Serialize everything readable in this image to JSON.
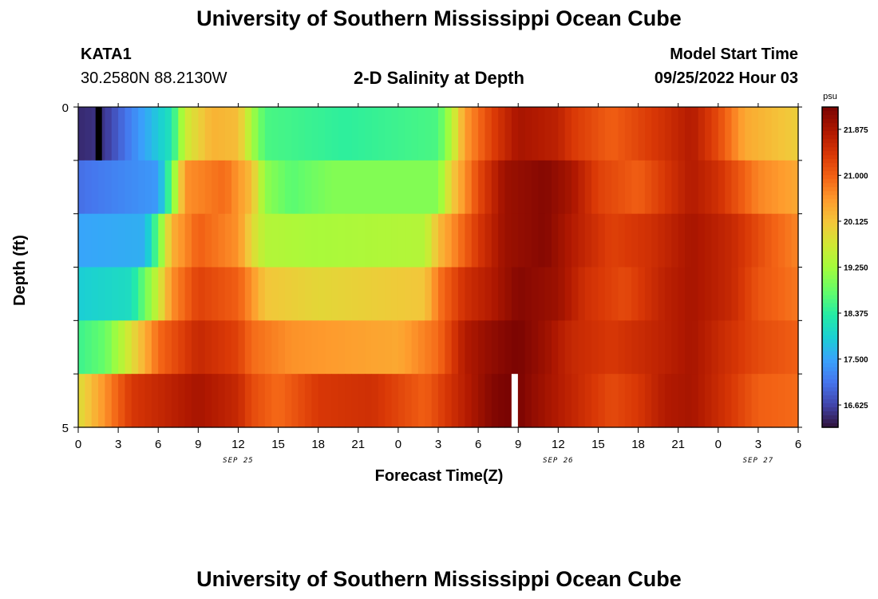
{
  "page": {
    "title": "University of Southern Mississippi Ocean Cube",
    "station": "KATA1",
    "coords": "30.2580N  88.2130W",
    "subtitle": "2-D Salinity at Depth",
    "model_label": "Model Start Time",
    "model_time": "09/25/2022 Hour 03",
    "footer_title": "University of Southern Mississippi Ocean Cube"
  },
  "chart_data": {
    "type": "heatmap",
    "title": "2-D Salinity at Depth",
    "xlabel": "Forecast Time(Z)",
    "ylabel": "Depth (ft)",
    "x_tick_labels": [
      "0",
      "3",
      "6",
      "9",
      "12",
      "15",
      "18",
      "21",
      "0",
      "3",
      "6",
      "9",
      "12",
      "15",
      "18",
      "21",
      "0",
      "3",
      "6"
    ],
    "x_range_hours": [
      0,
      54
    ],
    "date_labels": [
      {
        "label": "SEP 25",
        "hour": 12
      },
      {
        "label": "SEP 26",
        "hour": 36
      },
      {
        "label": "SEP 27",
        "hour": 51
      }
    ],
    "y_tick_labels": [
      "0",
      "5"
    ],
    "y_range": [
      0,
      5
    ],
    "colorbar": {
      "unit": "psu",
      "range": [
        16.2,
        22.3
      ],
      "tick_labels": [
        "21.875",
        "21.000",
        "20.125",
        "19.250",
        "18.375",
        "17.500",
        "16.625"
      ],
      "tick_values": [
        21.875,
        21.0,
        20.125,
        19.25,
        18.375,
        17.5,
        16.625
      ]
    },
    "colorscale": [
      [
        0.0,
        "#30123b"
      ],
      [
        0.07,
        "#4145ab"
      ],
      [
        0.14,
        "#4675ed"
      ],
      [
        0.21,
        "#39a2fc"
      ],
      [
        0.28,
        "#1bcfd4"
      ],
      [
        0.35,
        "#24eca6"
      ],
      [
        0.42,
        "#61fc6c"
      ],
      [
        0.5,
        "#a4fc3b"
      ],
      [
        0.57,
        "#d1e834"
      ],
      [
        0.64,
        "#f3c63a"
      ],
      [
        0.71,
        "#fe9b2d"
      ],
      [
        0.78,
        "#f36315"
      ],
      [
        0.85,
        "#d93806"
      ],
      [
        0.92,
        "#b11901"
      ],
      [
        1.0,
        "#7a0402"
      ]
    ],
    "depth_layers": [
      "0-1 ft",
      "1-2 ft",
      "2-3 ft",
      "3-4 ft",
      "4-5 ft"
    ],
    "layer_profiles": [
      [
        [
          0,
          16.4
        ],
        [
          2,
          16.5
        ],
        [
          4,
          17.2
        ],
        [
          7,
          18.2
        ],
        [
          8,
          19.6
        ],
        [
          10,
          20.3
        ],
        [
          12,
          20.2
        ],
        [
          13,
          19.3
        ],
        [
          14,
          18.6
        ],
        [
          20,
          18.4
        ],
        [
          27,
          18.6
        ],
        [
          28,
          19.4
        ],
        [
          29,
          20.5
        ],
        [
          31,
          21.3
        ],
        [
          33,
          21.9
        ],
        [
          36,
          21.7
        ],
        [
          37,
          21.4
        ],
        [
          40,
          21.0
        ],
        [
          44,
          21.5
        ],
        [
          46,
          21.8
        ],
        [
          48,
          21.2
        ],
        [
          50,
          20.4
        ],
        [
          54,
          20.0
        ]
      ],
      [
        [
          0,
          17.0
        ],
        [
          6,
          17.4
        ],
        [
          7,
          18.8
        ],
        [
          8,
          20.6
        ],
        [
          11,
          20.9
        ],
        [
          13,
          20.2
        ],
        [
          14,
          19.1
        ],
        [
          16,
          18.7
        ],
        [
          19,
          19.0
        ],
        [
          27,
          19.0
        ],
        [
          28,
          20.0
        ],
        [
          30,
          21.2
        ],
        [
          32,
          22.0
        ],
        [
          35,
          22.2
        ],
        [
          37,
          21.9
        ],
        [
          39,
          21.3
        ],
        [
          42,
          21.0
        ],
        [
          44,
          21.4
        ],
        [
          46,
          21.8
        ],
        [
          48,
          21.5
        ],
        [
          51,
          20.7
        ],
        [
          54,
          20.4
        ]
      ],
      [
        [
          0,
          17.5
        ],
        [
          5,
          17.6
        ],
        [
          6,
          18.8
        ],
        [
          7,
          20.3
        ],
        [
          9,
          21.0
        ],
        [
          12,
          20.6
        ],
        [
          13,
          19.9
        ],
        [
          14,
          19.4
        ],
        [
          18,
          19.3
        ],
        [
          26,
          19.4
        ],
        [
          27,
          20.2
        ],
        [
          30,
          21.4
        ],
        [
          32,
          22.0
        ],
        [
          35,
          22.2
        ],
        [
          37,
          21.8
        ],
        [
          40,
          21.3
        ],
        [
          43,
          21.5
        ],
        [
          46,
          21.9
        ],
        [
          49,
          21.6
        ],
        [
          52,
          21.0
        ],
        [
          54,
          20.7
        ]
      ],
      [
        [
          0,
          17.9
        ],
        [
          4,
          18.1
        ],
        [
          6,
          19.6
        ],
        [
          7,
          20.6
        ],
        [
          9,
          21.3
        ],
        [
          12,
          21.0
        ],
        [
          13,
          20.6
        ],
        [
          14,
          20.1
        ],
        [
          18,
          19.9
        ],
        [
          26,
          20.1
        ],
        [
          27,
          20.8
        ],
        [
          29,
          21.5
        ],
        [
          31,
          21.8
        ],
        [
          33,
          22.2
        ],
        [
          36,
          22.0
        ],
        [
          38,
          21.5
        ],
        [
          41,
          21.2
        ],
        [
          44,
          21.7
        ],
        [
          46,
          21.9
        ],
        [
          49,
          21.6
        ],
        [
          51,
          21.1
        ],
        [
          54,
          20.8
        ]
      ],
      [
        [
          0,
          18.5
        ],
        [
          2,
          18.8
        ],
        [
          4,
          19.8
        ],
        [
          6,
          20.9
        ],
        [
          9,
          21.6
        ],
        [
          12,
          21.3
        ],
        [
          13,
          20.9
        ],
        [
          16,
          20.6
        ],
        [
          24,
          20.4
        ],
        [
          27,
          20.9
        ],
        [
          29,
          21.8
        ],
        [
          31,
          22.1
        ],
        [
          33,
          22.3
        ],
        [
          35,
          22.0
        ],
        [
          37,
          21.6
        ],
        [
          40,
          21.4
        ],
        [
          44,
          21.7
        ],
        [
          46,
          21.9
        ],
        [
          48,
          21.6
        ],
        [
          51,
          21.2
        ],
        [
          54,
          21.0
        ]
      ]
    ],
    "deep_band_profile": [
      [
        0,
        19.8
      ],
      [
        2,
        20.6
      ],
      [
        4,
        21.4
      ],
      [
        6,
        21.6
      ],
      [
        9,
        21.9
      ],
      [
        12,
        21.6
      ],
      [
        13,
        21.2
      ],
      [
        15,
        20.9
      ],
      [
        18,
        21.4
      ],
      [
        22,
        21.5
      ],
      [
        26,
        21.0
      ],
      [
        28,
        21.5
      ],
      [
        31,
        22.2
      ],
      [
        32,
        22.3
      ],
      [
        33,
        22.3
      ],
      [
        34,
        22.1
      ],
      [
        36,
        21.8
      ],
      [
        38,
        21.5
      ],
      [
        40,
        21.2
      ],
      [
        42,
        21.4
      ],
      [
        44,
        21.8
      ],
      [
        46,
        21.9
      ],
      [
        49,
        21.4
      ],
      [
        51,
        21.0
      ],
      [
        54,
        20.9
      ]
    ]
  }
}
